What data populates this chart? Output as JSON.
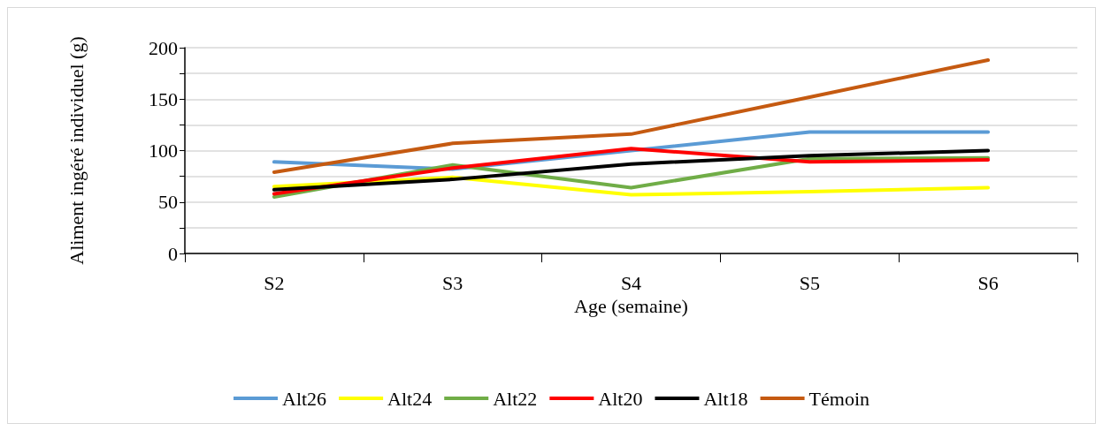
{
  "chart_data": {
    "type": "line",
    "xlabel": "Age (semaine)",
    "ylabel": "Aliment ingéré individuel (g)",
    "categories": [
      "S2",
      "S3",
      "S4",
      "S5",
      "S6"
    ],
    "series": [
      {
        "name": "Alt26",
        "color": "#5b9bd5",
        "values": [
          89,
          82,
          100,
          118,
          118
        ]
      },
      {
        "name": "Alt24",
        "color": "#ffff00",
        "values": [
          65,
          74,
          57,
          60,
          64
        ]
      },
      {
        "name": "Alt22",
        "color": "#70ad47",
        "values": [
          55,
          86,
          64,
          92,
          93
        ]
      },
      {
        "name": "Alt20",
        "color": "#ff0000",
        "values": [
          58,
          83,
          102,
          89,
          91
        ]
      },
      {
        "name": "Alt18",
        "color": "#000000",
        "values": [
          62,
          72,
          87,
          95,
          100
        ]
      },
      {
        "name": "Témoin",
        "color": "#c55a11",
        "values": [
          79,
          107,
          116,
          152,
          188
        ]
      }
    ],
    "ylim": [
      0,
      200
    ],
    "yticks": [
      0,
      {
        "value": 25,
        "label": null
      },
      50,
      {
        "value": 75,
        "label": null
      },
      100,
      {
        "value": 125,
        "label": null
      },
      150,
      {
        "value": 175,
        "label": null
      },
      200
    ],
    "grid": "y",
    "legend": "bottom",
    "marker": "none",
    "line_style": "solid"
  }
}
